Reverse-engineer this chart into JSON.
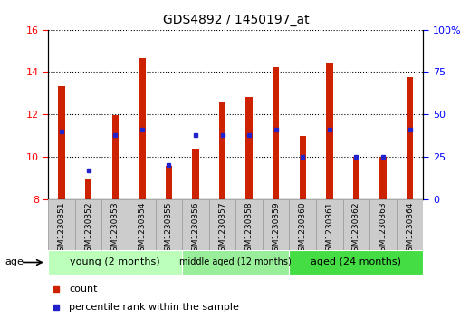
{
  "title": "GDS4892 / 1450197_at",
  "samples": [
    "GSM1230351",
    "GSM1230352",
    "GSM1230353",
    "GSM1230354",
    "GSM1230355",
    "GSM1230356",
    "GSM1230357",
    "GSM1230358",
    "GSM1230359",
    "GSM1230360",
    "GSM1230361",
    "GSM1230362",
    "GSM1230363",
    "GSM1230364"
  ],
  "counts": [
    13.35,
    8.95,
    11.95,
    14.65,
    9.55,
    10.4,
    12.6,
    12.8,
    14.25,
    11.0,
    14.45,
    10.0,
    10.0,
    13.75
  ],
  "percentile_ranks": [
    40,
    17,
    38,
    41,
    20,
    38,
    38,
    38,
    41,
    25,
    41,
    25,
    25,
    41
  ],
  "ymin": 8,
  "ymax": 16,
  "yticks": [
    8,
    10,
    12,
    14,
    16
  ],
  "y2min": 0,
  "y2max": 100,
  "y2ticks": [
    0,
    25,
    50,
    75,
    100
  ],
  "y2ticklabels": [
    "0",
    "25",
    "50",
    "75",
    "100%"
  ],
  "bar_color": "#cc2200",
  "dot_color": "#2222cc",
  "group_labels": [
    "young (2 months)",
    "middle aged (12 months)",
    "aged (24 months)"
  ],
  "group_ranges": [
    [
      0,
      4
    ],
    [
      5,
      8
    ],
    [
      9,
      13
    ]
  ],
  "group_colors": [
    "#bbffbb",
    "#99ee99",
    "#44dd44"
  ],
  "label_bg_color": "#cccccc",
  "plot_bg": "#ffffff",
  "legend_count_label": "count",
  "legend_pct_label": "percentile rank within the sample",
  "bar_width": 0.25
}
